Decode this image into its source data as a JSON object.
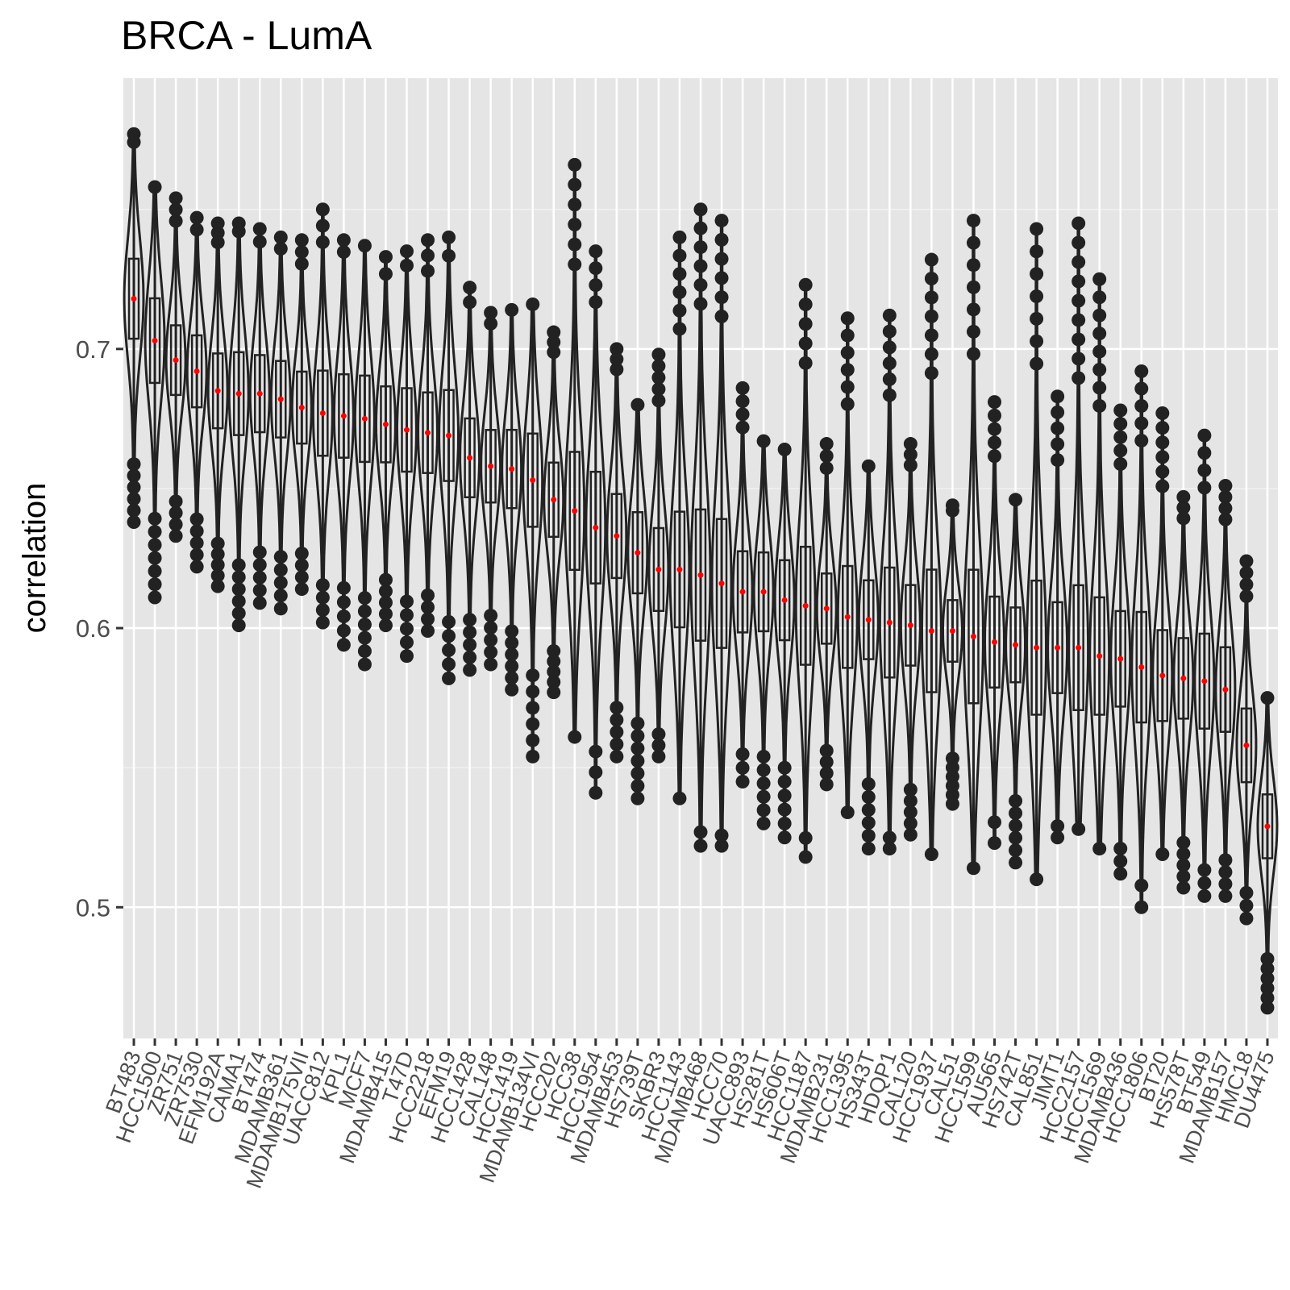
{
  "chart_data": {
    "type": "violin",
    "title": "BRCA - LumA",
    "xlabel": "",
    "ylabel": "correlation",
    "ylim": [
      0.453,
      0.797
    ],
    "yticks": [
      0.5,
      0.6,
      0.7
    ],
    "ytick_labels": [
      "0.5",
      "0.6",
      "0.7"
    ],
    "grid": true,
    "mean_marker_color": "#ff0000",
    "violin_color": "#222222",
    "panel_background": "#e5e5e5",
    "categories": [
      "BT483",
      "HCC1500",
      "ZR751",
      "ZR7530",
      "EFM192A",
      "CAMA1",
      "BT474",
      "MDAMB361",
      "MDAMB175VII",
      "UACC812",
      "KPL1",
      "MCF7",
      "MDAMB415",
      "T47D",
      "HCC2218",
      "EFM19",
      "HCC1428",
      "CAL148",
      "HCC1419",
      "MDAMB134VI",
      "HCC202",
      "HCC38",
      "HCC1954",
      "MDAMB453",
      "HS739T",
      "SKBR3",
      "HCC1143",
      "MDAMB468",
      "HCC70",
      "UACC893",
      "HS281T",
      "HS606T",
      "HCC1187",
      "MDAMB231",
      "HCC1395",
      "HS343T",
      "HDQP1",
      "CAL120",
      "HCC1937",
      "CAL51",
      "HCC1599",
      "AU565",
      "HS742T",
      "CAL851",
      "JIMT1",
      "HCC2157",
      "HCC1569",
      "MDAMB436",
      "HCC1806",
      "BT20",
      "HS578T",
      "BT549",
      "MDAMB157",
      "HMC18",
      "DU4475"
    ],
    "means": [
      0.718,
      0.703,
      0.696,
      0.692,
      0.685,
      0.684,
      0.684,
      0.682,
      0.679,
      0.677,
      0.676,
      0.675,
      0.673,
      0.671,
      0.67,
      0.669,
      0.661,
      0.658,
      0.657,
      0.653,
      0.646,
      0.642,
      0.636,
      0.633,
      0.627,
      0.621,
      0.621,
      0.619,
      0.616,
      0.613,
      0.613,
      0.61,
      0.608,
      0.607,
      0.604,
      0.603,
      0.602,
      0.601,
      0.599,
      0.599,
      0.597,
      0.595,
      0.594,
      0.593,
      0.593,
      0.593,
      0.59,
      0.589,
      0.586,
      0.583,
      0.582,
      0.581,
      0.578,
      0.558,
      0.529
    ],
    "maxes": [
      0.777,
      0.758,
      0.754,
      0.747,
      0.745,
      0.745,
      0.743,
      0.74,
      0.739,
      0.75,
      0.739,
      0.737,
      0.733,
      0.735,
      0.739,
      0.74,
      0.722,
      0.713,
      0.714,
      0.716,
      0.706,
      0.766,
      0.735,
      0.7,
      0.68,
      0.698,
      0.74,
      0.75,
      0.746,
      0.686,
      0.667,
      0.664,
      0.723,
      0.666,
      0.711,
      0.658,
      0.712,
      0.666,
      0.732,
      0.644,
      0.746,
      0.681,
      0.646,
      0.743,
      0.683,
      0.745,
      0.725,
      0.678,
      0.692,
      0.677,
      0.647,
      0.669,
      0.651,
      0.624,
      0.575
    ],
    "mins": [
      0.638,
      0.611,
      0.633,
      0.622,
      0.615,
      0.601,
      0.609,
      0.607,
      0.614,
      0.602,
      0.594,
      0.587,
      0.601,
      0.59,
      0.599,
      0.582,
      0.585,
      0.587,
      0.578,
      0.554,
      0.577,
      0.561,
      0.541,
      0.554,
      0.539,
      0.554,
      0.539,
      0.522,
      0.522,
      0.545,
      0.53,
      0.525,
      0.518,
      0.544,
      0.534,
      0.521,
      0.521,
      0.526,
      0.519,
      0.537,
      0.514,
      0.523,
      0.516,
      0.51,
      0.525,
      0.528,
      0.521,
      0.512,
      0.5,
      0.519,
      0.507,
      0.504,
      0.504,
      0.496,
      0.464
    ]
  }
}
